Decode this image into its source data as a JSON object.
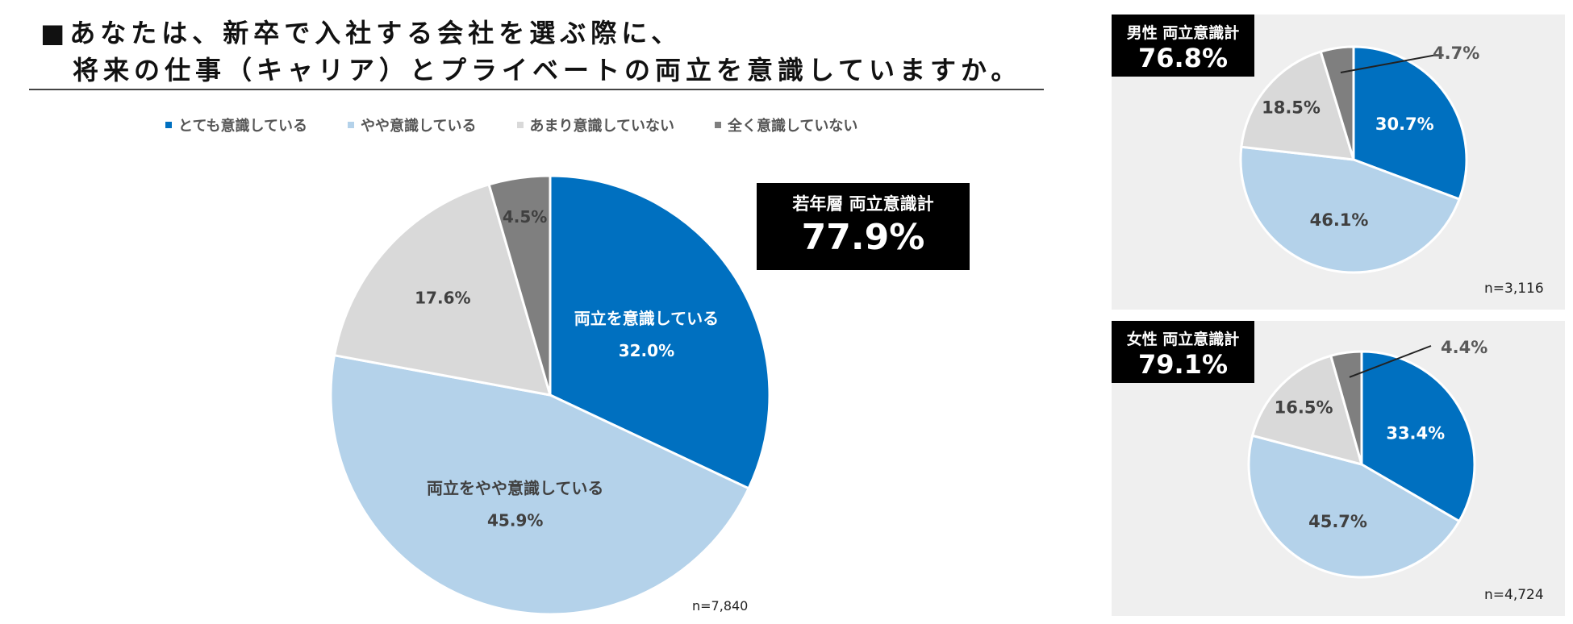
{
  "title": {
    "line1": "■あなたは、新卒で入社する会社を選ぶ際に、",
    "line2": "将来の仕事（キャリア）とプライベートの両立を意識していますか。"
  },
  "legend": [
    {
      "label": "とても意識している",
      "color": "#0070c0"
    },
    {
      "label": "やや意識している",
      "color": "#b4d2ea"
    },
    {
      "label": "あまり意識していない",
      "color": "#d9d9d9"
    },
    {
      "label": "全く意識していない",
      "color": "#7f7f7f"
    }
  ],
  "main_box": {
    "label": "若年層 両立意識計",
    "value": "77.9%"
  },
  "male_box": {
    "label": "男性 両立意識計",
    "value": "76.8%"
  },
  "female_box": {
    "label": "女性 両立意識計",
    "value": "79.1%"
  },
  "chart_data": [
    {
      "type": "pie",
      "n_label": "n=7,840",
      "categories": [
        "とても意識している",
        "やや意識している",
        "あまり意識していない",
        "全く意識していない"
      ],
      "values": [
        32.0,
        45.9,
        17.6,
        4.5
      ],
      "value_labels": [
        "32.0%",
        "45.9%",
        "17.6%",
        "4.5%"
      ],
      "slice_captions": [
        "両立を意識している",
        "両立をやや意識している",
        "",
        ""
      ],
      "colors": [
        "#0070c0",
        "#b4d2ea",
        "#d9d9d9",
        "#7f7f7f"
      ]
    },
    {
      "type": "pie",
      "n_label": "n=3,116",
      "categories": [
        "とても意識している",
        "やや意識している",
        "あまり意識していない",
        "全く意識していない"
      ],
      "values": [
        30.7,
        46.1,
        18.5,
        4.7
      ],
      "value_labels": [
        "30.7%",
        "46.1%",
        "18.5%",
        "4.7%"
      ],
      "colors": [
        "#0070c0",
        "#b4d2ea",
        "#d9d9d9",
        "#7f7f7f"
      ]
    },
    {
      "type": "pie",
      "n_label": "n=4,724",
      "categories": [
        "とても意識している",
        "やや意識している",
        "あまり意識していない",
        "全く意識していない"
      ],
      "values": [
        33.4,
        45.7,
        16.5,
        4.4
      ],
      "value_labels": [
        "33.4%",
        "45.7%",
        "16.5%",
        "4.4%"
      ],
      "colors": [
        "#0070c0",
        "#b4d2ea",
        "#d9d9d9",
        "#7f7f7f"
      ]
    }
  ]
}
